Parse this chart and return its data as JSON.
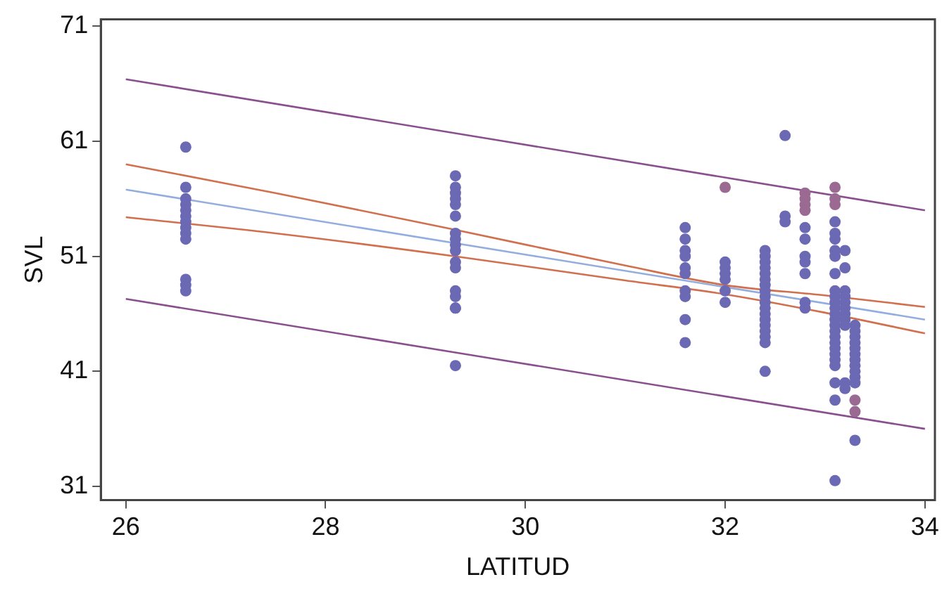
{
  "chart_data": {
    "type": "scatter",
    "xlabel": "LATITUD",
    "ylabel": "SVL",
    "xlim": [
      25.75,
      34.1
    ],
    "ylim": [
      29.8,
      71.6
    ],
    "xticks": [
      26,
      28,
      30,
      32,
      34
    ],
    "yticks": [
      31,
      41,
      51,
      61,
      71
    ],
    "grid": false,
    "legend": false,
    "series": [
      {
        "type": "scatter",
        "marker": "circle",
        "color": "#6b68b4",
        "x": [
          26.6,
          26.6,
          26.6,
          26.6,
          26.6,
          26.6,
          26.6,
          26.6,
          26.6,
          26.6,
          26.6,
          26.6,
          26.6,
          29.3,
          29.3,
          29.3,
          29.3,
          29.3,
          29.3,
          29.3,
          29.3,
          29.3,
          29.3,
          29.3,
          29.3,
          29.3,
          29.3,
          29.3,
          29.3,
          29.3,
          31.6,
          31.6,
          31.6,
          31.6,
          31.6,
          31.6,
          31.6,
          31.6,
          31.6,
          31.6,
          32.0,
          32.0,
          32.0,
          32.0,
          32.0,
          32.0,
          32.4,
          32.4,
          32.4,
          32.4,
          32.4,
          32.4,
          32.4,
          32.4,
          32.4,
          32.4,
          32.4,
          32.4,
          32.4,
          32.4,
          32.4,
          32.4,
          32.4,
          32.4,
          32.6,
          32.6,
          32.6,
          32.8,
          32.8,
          32.8,
          32.8,
          32.8,
          32.8,
          32.8,
          33.1,
          33.1,
          33.1,
          33.1,
          33.1,
          33.1,
          33.1,
          33.1,
          33.1,
          33.1,
          33.1,
          33.1,
          33.1,
          33.1,
          33.1,
          33.1,
          33.1,
          33.1,
          33.1,
          33.1,
          33.1,
          33.1,
          33.1,
          33.2,
          33.2,
          33.2,
          33.2,
          33.2,
          33.2,
          33.2,
          33.2,
          33.2,
          33.2,
          33.2,
          33.3,
          33.3,
          33.3,
          33.3,
          33.3,
          33.3,
          33.3,
          33.3,
          33.3,
          33.3,
          33.3,
          33.3
        ],
        "values": [
          60.5,
          57,
          56,
          55.5,
          55,
          54.5,
          54,
          53.5,
          53,
          52.5,
          49,
          48.5,
          48,
          58,
          57,
          56.5,
          56,
          55.5,
          54.5,
          53,
          52.5,
          52,
          51.5,
          50.5,
          50,
          48,
          47.5,
          46.5,
          46.5,
          41.5,
          53.5,
          52.5,
          51.5,
          51,
          50,
          49.5,
          48,
          47.5,
          45.5,
          43.5,
          50.5,
          50,
          49.5,
          49,
          48,
          47,
          51.5,
          51,
          50.5,
          50,
          49.5,
          49,
          48.5,
          48,
          47.5,
          47,
          46.5,
          46,
          45.5,
          45,
          44.5,
          44,
          43.5,
          41,
          61.5,
          54.5,
          54,
          53.5,
          52.5,
          51,
          50.5,
          49.5,
          47,
          46.5,
          54,
          53,
          52.5,
          51.5,
          51,
          49.5,
          48,
          47.5,
          47,
          46.5,
          46,
          45.5,
          45,
          44.5,
          44,
          43.5,
          43,
          42.5,
          42,
          41.5,
          40,
          38.5,
          31.5,
          51.5,
          50,
          48,
          47.5,
          47,
          46.5,
          46,
          45.5,
          45,
          40,
          39.5,
          45,
          44.5,
          44,
          43.5,
          43,
          42.5,
          42,
          41.5,
          41,
          40.5,
          40,
          35
        ]
      },
      {
        "type": "scatter",
        "marker": "circle",
        "color": "#9a6a92",
        "x": [
          32.0,
          32.8,
          32.8,
          32.8,
          32.8,
          33.1,
          33.1,
          33.1,
          33.3,
          33.3
        ],
        "values": [
          57,
          56.5,
          56,
          55.5,
          55,
          57,
          56,
          55.5,
          38.5,
          37.5
        ]
      },
      {
        "type": "line",
        "marker": "none",
        "line_style": "solid",
        "color": "#8a4f8e",
        "x": [
          26,
          34
        ],
        "values": [
          66.4,
          55.0
        ]
      },
      {
        "type": "line",
        "marker": "none",
        "line_style": "solid",
        "color": "#8a4f8e",
        "x": [
          26,
          34
        ],
        "values": [
          47.3,
          36.0
        ]
      },
      {
        "type": "line",
        "marker": "none",
        "line_style": "solid",
        "color": "#d0704f",
        "x": [
          26,
          27.5,
          29.3,
          31,
          32,
          33,
          34
        ],
        "values": [
          59.0,
          56.5,
          53.3,
          50.2,
          48.5,
          47.6,
          46.6
        ]
      },
      {
        "type": "line",
        "marker": "none",
        "line_style": "solid",
        "color": "#d0704f",
        "x": [
          26,
          27.5,
          29.3,
          31,
          32,
          33,
          34
        ],
        "values": [
          54.4,
          53.0,
          51.0,
          48.9,
          47.7,
          46.1,
          44.3
        ]
      },
      {
        "type": "line",
        "marker": "none",
        "line_style": "solid",
        "color": "#93aede",
        "x": [
          26,
          34
        ],
        "values": [
          56.8,
          45.5
        ]
      }
    ]
  }
}
